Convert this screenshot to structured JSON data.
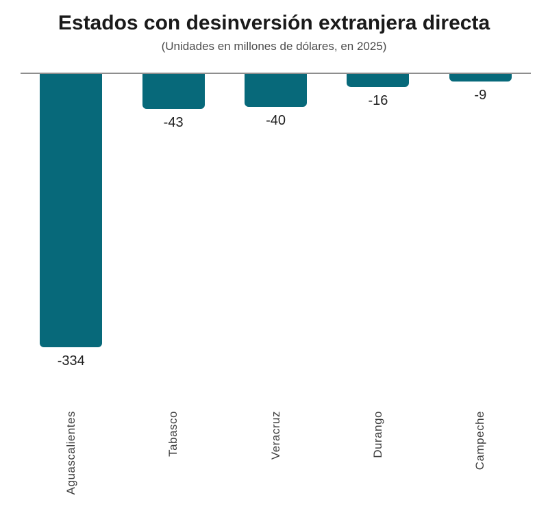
{
  "header": {
    "title": "Estados con desinversión extranjera directa",
    "subtitle": "(Unidades en millones de dólares, en 2025)"
  },
  "chart_data": {
    "type": "bar",
    "title": "Estados con desinversión extranjera directa",
    "subtitle": "(Unidades en millones de dólares, en 2025)",
    "categories": [
      "Aguascalientes",
      "Tabasco",
      "Veracruz",
      "Durango",
      "Campeche"
    ],
    "values": [
      -334,
      -43,
      -40,
      -16,
      -9
    ],
    "value_labels": [
      "-334",
      "-43",
      "-40",
      "-16",
      "-9"
    ],
    "xlabel": "",
    "ylabel": "",
    "ylim": [
      -360,
      0
    ],
    "baseline": 0,
    "orientation": "vertical-negative",
    "grid": false,
    "legend": false,
    "bar_color": "#07697a",
    "axis_line_color": "#8e8e8e",
    "value_label_color": "#1f1f1f",
    "category_label_color": "#3e3e3e",
    "category_label_rotation_deg": 90
  }
}
